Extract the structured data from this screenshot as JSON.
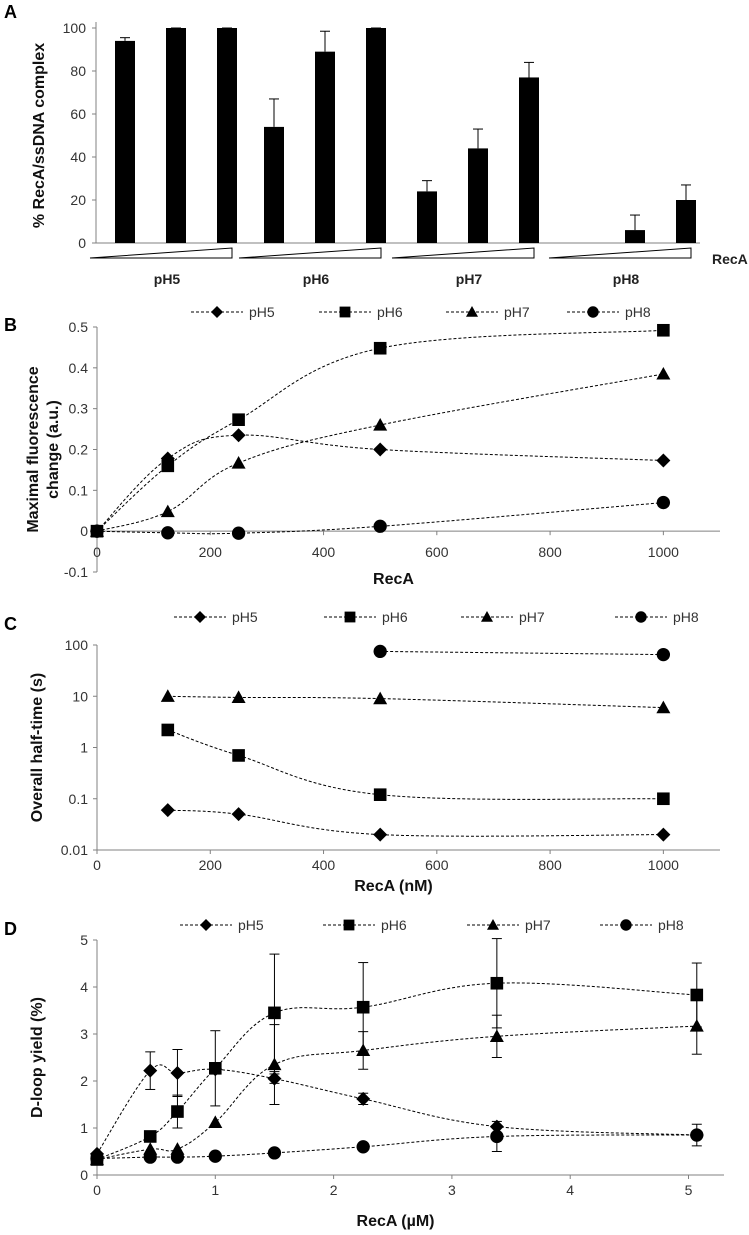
{
  "chart_data": [
    {
      "panel": "A",
      "type": "bar",
      "ylabel": "% RecA/ssDNA complex",
      "ylim": [
        0,
        100
      ],
      "yticks": [
        0,
        20,
        40,
        60,
        80,
        100
      ],
      "xlabel": "RecA",
      "groups": [
        {
          "name": "pH5",
          "values": [
            94,
            100,
            100
          ],
          "errors": [
            1.5,
            0,
            0
          ]
        },
        {
          "name": "pH6",
          "values": [
            54,
            89,
            100
          ],
          "errors": [
            13,
            9.5,
            0
          ]
        },
        {
          "name": "pH7",
          "values": [
            24,
            44,
            77
          ],
          "errors": [
            5,
            9,
            7
          ]
        },
        {
          "name": "pH8",
          "values": [
            0,
            6,
            20
          ],
          "errors": [
            0,
            7,
            7
          ]
        }
      ]
    },
    {
      "panel": "B",
      "type": "line",
      "xlabel": "RecA",
      "ylabel": "Maximal fluorescence change (a.u.)",
      "ylabel_lines": [
        "Maximal fluorescence",
        "change (a.u.)"
      ],
      "xlim": [
        0,
        1100
      ],
      "ylim": [
        -0.1,
        0.5
      ],
      "xticks": [
        0,
        200,
        400,
        600,
        800,
        1000
      ],
      "yticks": [
        "-0.1",
        "0",
        "0.1",
        "0.2",
        "0.3",
        "0.4",
        "0.5"
      ],
      "series": [
        {
          "name": "pH5",
          "marker": "diamond",
          "x": [
            0,
            125,
            250,
            500,
            1000
          ],
          "y": [
            0,
            0.178,
            0.235,
            0.2,
            0.173
          ]
        },
        {
          "name": "pH6",
          "marker": "square",
          "x": [
            0,
            125,
            250,
            500,
            1000
          ],
          "y": [
            0,
            0.16,
            0.273,
            0.448,
            0.492
          ]
        },
        {
          "name": "pH7",
          "marker": "triangle",
          "x": [
            0,
            125,
            250,
            500,
            1000
          ],
          "y": [
            0,
            0.048,
            0.167,
            0.26,
            0.385
          ]
        },
        {
          "name": "pH8",
          "marker": "circle",
          "x": [
            0,
            125,
            250,
            500,
            1000
          ],
          "y": [
            0,
            -0.004,
            -0.005,
            0.012,
            0.07
          ]
        }
      ]
    },
    {
      "panel": "C",
      "type": "line",
      "yscale": "log",
      "xlabel": "RecA (nM)",
      "ylabel": "Overall half-time (s)",
      "xlim": [
        0,
        1100
      ],
      "ylim": [
        0.01,
        100
      ],
      "xticks": [
        0,
        200,
        400,
        600,
        800,
        1000
      ],
      "yticks": [
        "0.01",
        "0.1",
        "1",
        "10",
        "100"
      ],
      "series": [
        {
          "name": "pH5",
          "marker": "diamond",
          "x": [
            125,
            250,
            500,
            1000
          ],
          "y": [
            0.06,
            0.05,
            0.02,
            0.02
          ]
        },
        {
          "name": "pH6",
          "marker": "square",
          "x": [
            125,
            250,
            500,
            1000
          ],
          "y": [
            2.2,
            0.7,
            0.12,
            0.1
          ]
        },
        {
          "name": "pH7",
          "marker": "triangle",
          "x": [
            125,
            250,
            500,
            1000
          ],
          "y": [
            10,
            9.5,
            9,
            6
          ]
        },
        {
          "name": "pH8",
          "marker": "circle",
          "x": [
            500,
            1000
          ],
          "y": [
            75,
            65
          ]
        }
      ]
    },
    {
      "panel": "D",
      "type": "line",
      "xlabel": "RecA (µM)",
      "ylabel": "D-loop yield (%)",
      "xlim": [
        0,
        5.3
      ],
      "ylim": [
        0,
        5
      ],
      "xticks": [
        0,
        1,
        2,
        3,
        4,
        5
      ],
      "yticks": [
        0,
        1,
        2,
        3,
        4,
        5
      ],
      "series": [
        {
          "name": "pH5",
          "marker": "diamond",
          "x": [
            0,
            0.45,
            0.68,
            1.0,
            1.5,
            2.25,
            3.38,
            5.07
          ],
          "y": [
            0.45,
            2.22,
            2.17,
            2.25,
            2.05,
            1.62,
            1.03,
            0.85
          ],
          "err": [
            0,
            0.4,
            0.5,
            0,
            0.1,
            0.12,
            0,
            0
          ]
        },
        {
          "name": "pH6",
          "marker": "square",
          "x": [
            0,
            0.45,
            0.68,
            1.0,
            1.5,
            2.25,
            3.38,
            5.07
          ],
          "y": [
            0.33,
            0.82,
            1.35,
            2.27,
            3.45,
            3.57,
            4.08,
            3.83
          ],
          "err": [
            0,
            0,
            0.35,
            0.8,
            1.25,
            0.95,
            0.95,
            0.68
          ]
        },
        {
          "name": "pH7",
          "marker": "triangle",
          "x": [
            0,
            0.45,
            0.68,
            1.0,
            1.5,
            2.25,
            3.38,
            5.07
          ],
          "y": [
            0.33,
            0.55,
            0.55,
            1.12,
            2.35,
            2.65,
            2.95,
            3.17
          ],
          "err": [
            0,
            0,
            0,
            0,
            0.85,
            0.4,
            0.45,
            0.6
          ]
        },
        {
          "name": "pH8",
          "marker": "circle",
          "x": [
            0,
            0.45,
            0.68,
            1.0,
            1.5,
            2.25,
            3.38,
            5.07
          ],
          "y": [
            0.35,
            0.38,
            0.38,
            0.4,
            0.47,
            0.6,
            0.82,
            0.85
          ],
          "err": [
            0,
            0,
            0,
            0,
            0,
            0,
            0.32,
            0.23
          ]
        }
      ]
    }
  ],
  "legend_labels": [
    "pH5",
    "pH6",
    "pH7",
    "pH8"
  ]
}
